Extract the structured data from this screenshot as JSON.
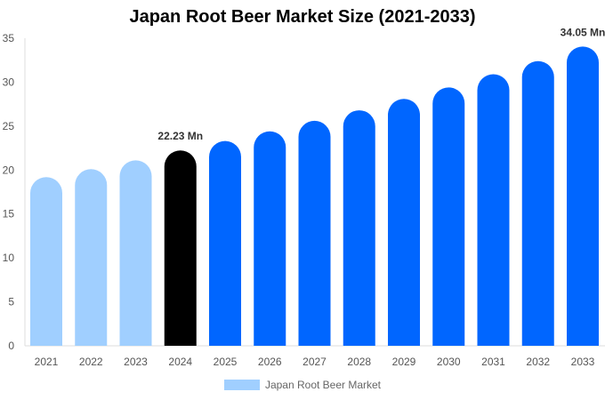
{
  "chart_data": {
    "type": "bar",
    "title": "Japan Root Beer Market Size (2021-2033)",
    "categories": [
      "2021",
      "2022",
      "2023",
      "2024",
      "2025",
      "2026",
      "2027",
      "2028",
      "2029",
      "2030",
      "2031",
      "2032",
      "2033"
    ],
    "series": [
      {
        "name": "Japan Root Beer Market",
        "values": [
          19.2,
          20.1,
          21.1,
          22.23,
          23.3,
          24.4,
          25.6,
          26.8,
          28.1,
          29.4,
          30.9,
          32.4,
          34.05
        ]
      }
    ],
    "data_labels": [
      {
        "category": "2024",
        "text": "22.23 Mn"
      },
      {
        "category": "2033",
        "text": "34.05 Mn"
      }
    ],
    "ylim": [
      0,
      35
    ],
    "yticks": [
      0,
      5,
      10,
      15,
      20,
      25,
      30,
      35
    ],
    "xlabel": "",
    "ylabel": "",
    "grid": false,
    "legend": "bottom",
    "colors": {
      "historical": "#a0cfff",
      "current": "#000000",
      "forecast": "#0066ff"
    }
  }
}
